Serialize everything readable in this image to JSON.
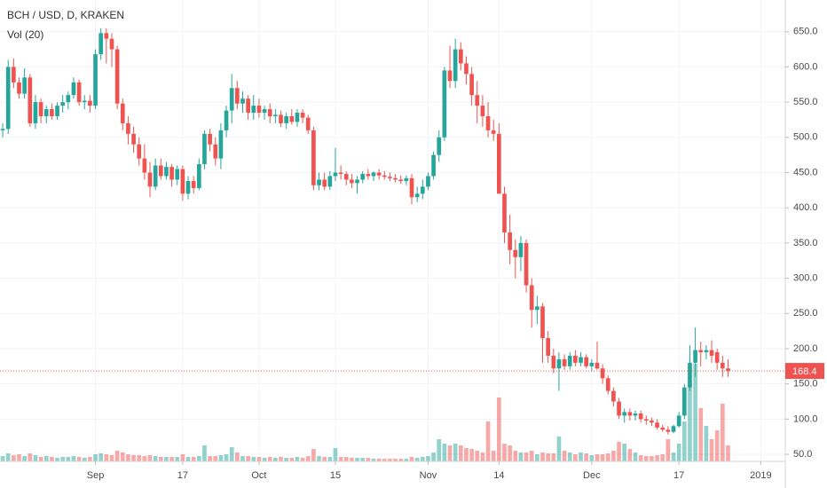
{
  "chart_data": {
    "type": "candlestick",
    "title": "BCH / USD, D, KRAKEN",
    "volume_label": "Vol (20)",
    "up_color": "#26a69a",
    "down_color": "#ef5350",
    "grid": true,
    "ylim": [
      40,
      695
    ],
    "yticks": [
      {
        "value": 50,
        "label": "50.0"
      },
      {
        "value": 100,
        "label": "100.0"
      },
      {
        "value": 150,
        "label": "150.0"
      },
      {
        "value": 200,
        "label": "200.0"
      },
      {
        "value": 250,
        "label": "250.0"
      },
      {
        "value": 300,
        "label": "300.0"
      },
      {
        "value": 350,
        "label": "350.0"
      },
      {
        "value": 400,
        "label": "400.0"
      },
      {
        "value": 450,
        "label": "450.0"
      },
      {
        "value": 500,
        "label": "500.0"
      },
      {
        "value": 550,
        "label": "550.0"
      },
      {
        "value": 600,
        "label": "600.0"
      },
      {
        "value": 650,
        "label": "650.0"
      }
    ],
    "categories": [
      null,
      null,
      null,
      null,
      null,
      null,
      null,
      null,
      null,
      null,
      null,
      null,
      null,
      null,
      null,
      null,
      null,
      "Sep",
      null,
      null,
      null,
      null,
      null,
      null,
      null,
      null,
      null,
      null,
      null,
      null,
      null,
      null,
      null,
      "17",
      null,
      null,
      null,
      null,
      null,
      null,
      null,
      null,
      null,
      null,
      null,
      null,
      null,
      "Oct",
      null,
      null,
      null,
      null,
      null,
      null,
      null,
      null,
      null,
      null,
      null,
      null,
      null,
      "15",
      null,
      null,
      null,
      null,
      null,
      null,
      null,
      null,
      null,
      null,
      null,
      null,
      null,
      null,
      null,
      null,
      "Nov",
      null,
      null,
      null,
      null,
      null,
      null,
      null,
      null,
      null,
      null,
      null,
      null,
      "14",
      null,
      null,
      null,
      null,
      null,
      null,
      null,
      null,
      null,
      null,
      null,
      null,
      null,
      null,
      null,
      null,
      "Dec",
      null,
      null,
      null,
      null,
      null,
      null,
      null,
      null,
      null,
      null,
      null,
      null,
      null,
      null,
      null,
      "17",
      null,
      null,
      null,
      null,
      null,
      null,
      null,
      null,
      null,
      null,
      null,
      null,
      null,
      null,
      "2019",
      null,
      null,
      null,
      null
    ],
    "ohlc": [
      [
        510,
        520,
        500,
        512
      ],
      [
        512,
        610,
        505,
        600
      ],
      [
        600,
        612,
        570,
        578
      ],
      [
        578,
        585,
        555,
        562
      ],
      [
        562,
        598,
        555,
        585
      ],
      [
        585,
        590,
        515,
        520
      ],
      [
        520,
        560,
        512,
        550
      ],
      [
        550,
        555,
        520,
        530
      ],
      [
        530,
        545,
        520,
        540
      ],
      [
        540,
        548,
        525,
        530
      ],
      [
        530,
        550,
        525,
        545
      ],
      [
        545,
        560,
        535,
        550
      ],
      [
        550,
        565,
        540,
        560
      ],
      [
        560,
        585,
        555,
        578
      ],
      [
        578,
        582,
        545,
        550
      ],
      [
        550,
        560,
        540,
        552
      ],
      [
        552,
        560,
        535,
        545
      ],
      [
        545,
        625,
        540,
        618
      ],
      [
        618,
        655,
        610,
        648
      ],
      [
        648,
        655,
        605,
        640
      ],
      [
        640,
        648,
        600,
        625
      ],
      [
        625,
        630,
        540,
        548
      ],
      [
        548,
        555,
        510,
        520
      ],
      [
        520,
        530,
        490,
        505
      ],
      [
        505,
        515,
        478,
        490
      ],
      [
        490,
        500,
        460,
        470
      ],
      [
        470,
        490,
        440,
        450
      ],
      [
        450,
        465,
        415,
        430
      ],
      [
        430,
        470,
        425,
        460
      ],
      [
        460,
        470,
        440,
        445
      ],
      [
        445,
        465,
        440,
        458
      ],
      [
        458,
        462,
        430,
        440
      ],
      [
        440,
        460,
        432,
        455
      ],
      [
        455,
        460,
        410,
        420
      ],
      [
        420,
        445,
        412,
        438
      ],
      [
        438,
        445,
        420,
        428
      ],
      [
        428,
        470,
        425,
        462
      ],
      [
        462,
        510,
        455,
        505
      ],
      [
        505,
        512,
        480,
        490
      ],
      [
        490,
        500,
        460,
        470
      ],
      [
        470,
        520,
        455,
        510
      ],
      [
        510,
        545,
        500,
        538
      ],
      [
        538,
        590,
        520,
        570
      ],
      [
        570,
        580,
        540,
        548
      ],
      [
        548,
        565,
        535,
        555
      ],
      [
        555,
        560,
        525,
        535
      ],
      [
        535,
        560,
        525,
        545
      ],
      [
        545,
        555,
        528,
        535
      ],
      [
        535,
        545,
        525,
        540
      ],
      [
        540,
        548,
        520,
        530
      ],
      [
        530,
        540,
        520,
        532
      ],
      [
        532,
        538,
        515,
        520
      ],
      [
        520,
        535,
        512,
        530
      ],
      [
        530,
        540,
        518,
        522
      ],
      [
        522,
        540,
        515,
        535
      ],
      [
        535,
        540,
        520,
        528
      ],
      [
        528,
        532,
        505,
        510
      ],
      [
        510,
        515,
        425,
        432
      ],
      [
        432,
        450,
        425,
        440
      ],
      [
        440,
        450,
        425,
        430
      ],
      [
        430,
        452,
        425,
        445
      ],
      [
        445,
        485,
        438,
        450
      ],
      [
        450,
        460,
        440,
        448
      ],
      [
        448,
        452,
        432,
        440
      ],
      [
        440,
        448,
        428,
        435
      ],
      [
        435,
        445,
        420,
        440
      ],
      [
        440,
        452,
        435,
        448
      ],
      [
        448,
        455,
        440,
        445
      ],
      [
        445,
        452,
        438,
        450
      ],
      [
        450,
        455,
        440,
        446
      ],
      [
        446,
        452,
        440,
        444
      ],
      [
        444,
        450,
        438,
        442
      ],
      [
        442,
        448,
        436,
        440
      ],
      [
        440,
        446,
        434,
        438
      ],
      [
        438,
        446,
        432,
        442
      ],
      [
        442,
        448,
        405,
        415
      ],
      [
        415,
        430,
        408,
        420
      ],
      [
        420,
        440,
        412,
        430
      ],
      [
        430,
        450,
        425,
        445
      ],
      [
        445,
        480,
        440,
        475
      ],
      [
        475,
        510,
        465,
        500
      ],
      [
        500,
        600,
        495,
        595
      ],
      [
        595,
        630,
        570,
        580
      ],
      [
        580,
        640,
        570,
        625
      ],
      [
        625,
        635,
        595,
        605
      ],
      [
        605,
        615,
        575,
        590
      ],
      [
        590,
        600,
        545,
        560
      ],
      [
        560,
        580,
        520,
        545
      ],
      [
        545,
        560,
        515,
        530
      ],
      [
        530,
        550,
        500,
        510
      ],
      [
        510,
        525,
        495,
        505
      ],
      [
        505,
        520,
        420,
        420
      ],
      [
        420,
        430,
        350,
        365
      ],
      [
        365,
        390,
        320,
        340
      ],
      [
        340,
        355,
        300,
        330
      ],
      [
        330,
        360,
        310,
        350
      ],
      [
        350,
        355,
        280,
        290
      ],
      [
        290,
        300,
        230,
        255
      ],
      [
        255,
        275,
        235,
        260
      ],
      [
        260,
        265,
        180,
        215
      ],
      [
        215,
        225,
        180,
        190
      ],
      [
        190,
        200,
        165,
        172
      ],
      [
        172,
        195,
        140,
        185
      ],
      [
        185,
        192,
        170,
        175
      ],
      [
        175,
        195,
        170,
        190
      ],
      [
        190,
        198,
        175,
        180
      ],
      [
        180,
        195,
        175,
        188
      ],
      [
        188,
        192,
        172,
        175
      ],
      [
        175,
        185,
        168,
        180
      ],
      [
        180,
        210,
        170,
        172
      ],
      [
        172,
        178,
        150,
        158
      ],
      [
        158,
        162,
        135,
        140
      ],
      [
        140,
        145,
        118,
        125
      ],
      [
        125,
        130,
        100,
        105
      ],
      [
        105,
        115,
        95,
        110
      ],
      [
        110,
        115,
        98,
        105
      ],
      [
        105,
        112,
        98,
        108
      ],
      [
        108,
        112,
        95,
        100
      ],
      [
        100,
        105,
        92,
        98
      ],
      [
        98,
        102,
        90,
        95
      ],
      [
        95,
        100,
        85,
        88
      ],
      [
        88,
        92,
        82,
        85
      ],
      [
        85,
        90,
        78,
        82
      ],
      [
        82,
        92,
        80,
        90
      ],
      [
        90,
        110,
        88,
        105
      ],
      [
        105,
        150,
        100,
        145
      ],
      [
        145,
        205,
        140,
        180
      ],
      [
        180,
        230,
        160,
        198
      ],
      [
        198,
        210,
        175,
        195
      ],
      [
        195,
        205,
        185,
        198
      ],
      [
        198,
        212,
        180,
        190
      ],
      [
        195,
        200,
        170,
        180
      ],
      [
        180,
        190,
        160,
        172
      ],
      [
        172,
        185,
        160,
        168.4
      ],
      null,
      null,
      null,
      null,
      null,
      null,
      null,
      null,
      null,
      null
    ],
    "volume": [
      6,
      9,
      7,
      8,
      6,
      9,
      7,
      5,
      6,
      5,
      4,
      5,
      5,
      6,
      5,
      4,
      5,
      8,
      9,
      8,
      7,
      12,
      10,
      8,
      7,
      7,
      6,
      7,
      6,
      5,
      5,
      5,
      5,
      8,
      5,
      5,
      6,
      18,
      6,
      6,
      7,
      8,
      16,
      10,
      6,
      6,
      5,
      5,
      4,
      5,
      4,
      5,
      4,
      4,
      5,
      4,
      6,
      14,
      6,
      5,
      5,
      15,
      5,
      5,
      4,
      4,
      4,
      4,
      3,
      3,
      3,
      3,
      3,
      3,
      3,
      5,
      4,
      5,
      6,
      10,
      25,
      20,
      18,
      20,
      18,
      15,
      14,
      12,
      10,
      45,
      12,
      72,
      20,
      18,
      12,
      10,
      10,
      12,
      8,
      10,
      9,
      9,
      28,
      12,
      10,
      8,
      10,
      9,
      7,
      8,
      8,
      9,
      12,
      22,
      20,
      14,
      10,
      7,
      6,
      6,
      7,
      8,
      25,
      10,
      20,
      45,
      90,
      110,
      60,
      40,
      25,
      35,
      65,
      18,
      null,
      null,
      null,
      null,
      null,
      null,
      null,
      null,
      null,
      null
    ]
  }
}
